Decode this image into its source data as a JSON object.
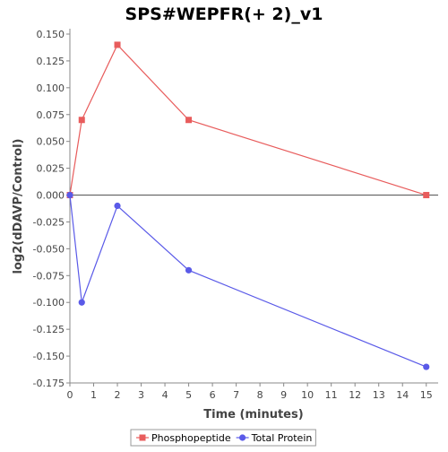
{
  "chart_data": {
    "type": "line",
    "title": "SPS#WEPFR(+ 2)_v1",
    "xlabel": "Time (minutes)",
    "ylabel": "log2(dDAVP/Control)",
    "xlim": [
      0,
      15.5
    ],
    "ylim": [
      -0.175,
      0.155
    ],
    "x_ticks": [
      "0",
      "1",
      "2",
      "3",
      "4",
      "5",
      "6",
      "7",
      "8",
      "9",
      "10",
      "11",
      "12",
      "13",
      "14",
      "15"
    ],
    "y_ticks": [
      "-0.175",
      "-0.150",
      "-0.125",
      "-0.100",
      "-0.075",
      "-0.050",
      "-0.025",
      "0.000",
      "0.025",
      "0.050",
      "0.075",
      "0.100",
      "0.125",
      "0.150"
    ],
    "grid": false,
    "zero_line": true,
    "legend_position": "bottom",
    "series": [
      {
        "name": "Phosphopeptide",
        "color": "#e85c5c",
        "marker": "square",
        "x": [
          0,
          0.5,
          2,
          5,
          15
        ],
        "y": [
          0.0,
          0.07,
          0.14,
          0.07,
          0.0
        ]
      },
      {
        "name": "Total Protein",
        "color": "#5a5ae8",
        "marker": "circle",
        "x": [
          0,
          0.5,
          2,
          5,
          15
        ],
        "y": [
          0.0,
          -0.1,
          -0.01,
          -0.07,
          -0.16
        ]
      }
    ]
  }
}
